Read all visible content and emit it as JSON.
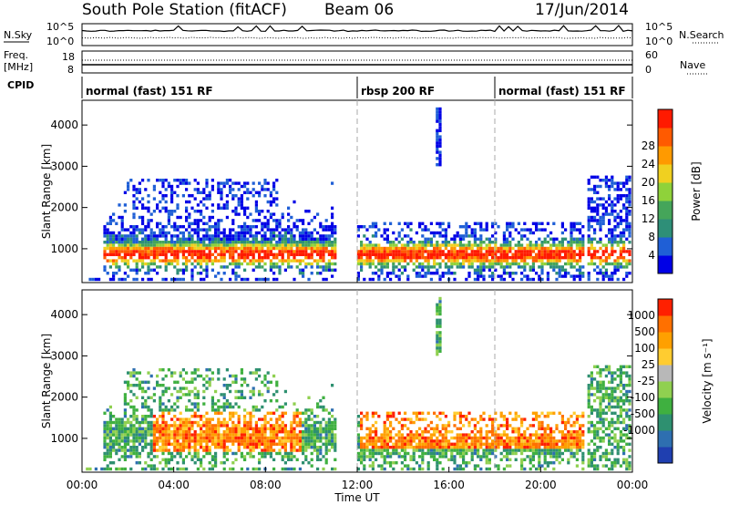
{
  "header": {
    "station": "South Pole Station (fitACF)",
    "beam": "Beam 06",
    "date": "17/Jun/2014"
  },
  "aux_panels": {
    "nsky_label": "N.Sky",
    "nsearch_label": "N.Search",
    "freq_label_1": "Freq.",
    "freq_label_2": "[MHz]",
    "nave_label": "Nave",
    "cpid_label": "CPID",
    "nsky_ticks": [
      "10^5",
      "10^0"
    ],
    "nsearch_ticks": [
      "10^5",
      "10^0"
    ],
    "freq_ticks": [
      "18",
      "8"
    ],
    "nave_ticks": [
      "60",
      "0"
    ]
  },
  "cpid_segments": [
    {
      "label": "normal (fast) 151 RF",
      "start_hour": 0
    },
    {
      "label": "rbsp 200 RF",
      "start_hour": 12
    },
    {
      "label": "normal (fast) 151 RF",
      "start_hour": 18
    }
  ],
  "chart_data": [
    {
      "type": "heatmap",
      "name": "power",
      "ylabel": "Slant Range [km]",
      "xlabel": "Time UT",
      "x_ticks": [
        "00:00",
        "04:00",
        "08:00",
        "12:00",
        "16:00",
        "20:00",
        "00:00"
      ],
      "x_range_hours": [
        0,
        24
      ],
      "y_ticks": [
        1000,
        2000,
        3000,
        4000
      ],
      "ylim": [
        180,
        4600
      ],
      "colorbar_label": "Power [dB]",
      "colorbar_ticks": [
        "4",
        "8",
        "12",
        "16",
        "20",
        "24",
        "28"
      ],
      "colorbar_colors": [
        "#0000e6",
        "#1f5fd6",
        "#2e8f78",
        "#45a55a",
        "#8fd23a",
        "#f0d020",
        "#ff9a00",
        "#ff5a00",
        "#ff1a00"
      ],
      "vertical_markers_hours": [
        12,
        18
      ]
    },
    {
      "type": "heatmap",
      "name": "velocity",
      "ylabel": "Slant Range [km]",
      "xlabel": "Time UT",
      "x_ticks": [
        "00:00",
        "04:00",
        "08:00",
        "12:00",
        "16:00",
        "20:00",
        "00:00"
      ],
      "x_range_hours": [
        0,
        24
      ],
      "y_ticks": [
        1000,
        2000,
        3000,
        4000
      ],
      "ylim": [
        180,
        4600
      ],
      "colorbar_label": "Velocity [m s⁻¹]",
      "colorbar_ticks": [
        "1000",
        "500",
        "100",
        "25",
        "-25",
        "-100",
        "-500",
        "-1000"
      ],
      "colorbar_colors": [
        "#1f3fb0",
        "#2e6fb0",
        "#2e9070",
        "#3fb040",
        "#90d050",
        "#b8b8b8",
        "#ffcc30",
        "#ffa000",
        "#ff7000",
        "#ff2000"
      ],
      "vertical_markers_hours": [
        12,
        18
      ]
    }
  ]
}
